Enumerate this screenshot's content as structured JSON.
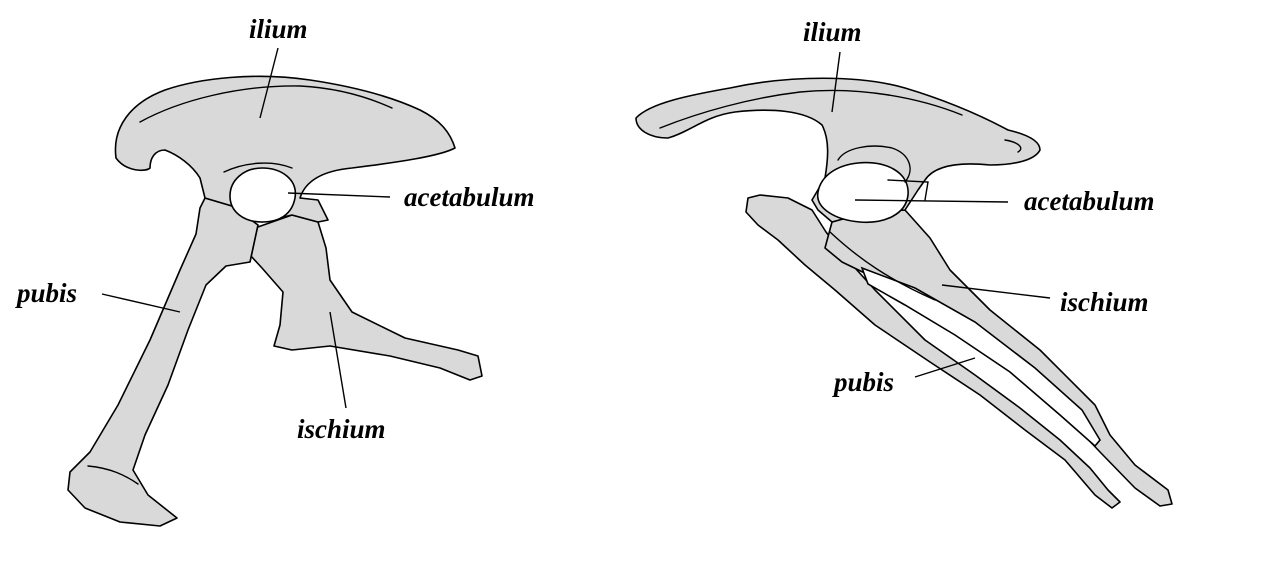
{
  "labels": {
    "left": {
      "ilium": "ilium",
      "acetabulum": "acetabulum",
      "pubis": "pubis",
      "ischium": "ischium"
    },
    "right": {
      "ilium": "ilium",
      "acetabulum": "acetabulum",
      "ischium": "ischium",
      "pubis": "pubis"
    }
  },
  "colors": {
    "bone_fill": "#d9d9d9",
    "outline": "#000000",
    "background": "#ffffff"
  }
}
